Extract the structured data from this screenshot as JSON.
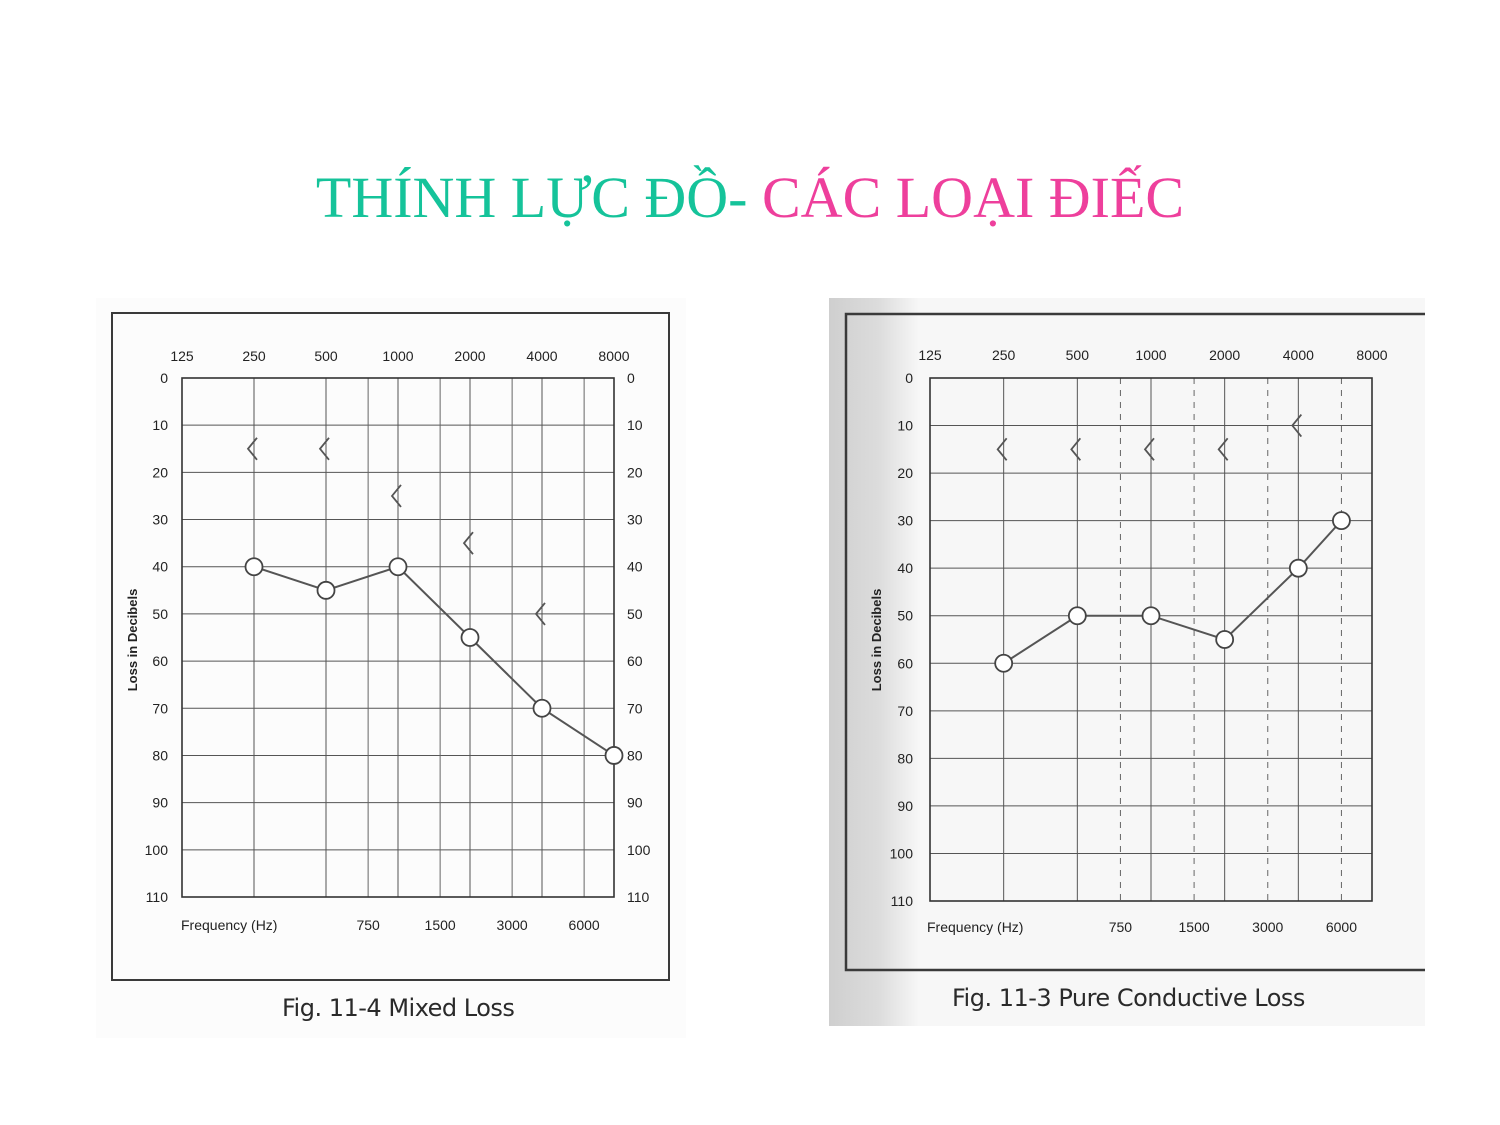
{
  "slide": {
    "title_part_1": "THÍNH LỰC ĐỒ-",
    "title_part_2": " CÁC LOẠI ĐIẾC",
    "title_color_1": "#15c39a",
    "title_color_2": "#ee3f9c"
  },
  "chart_data": [
    {
      "type": "line",
      "caption": "Fig. 11-4 Mixed Loss",
      "ylabel": "Loss in Decibels",
      "xlabel": "Frequency (Hz)",
      "top_frequency_labels": [
        "125",
        "250",
        "500",
        "1000",
        "2000",
        "4000",
        "8000"
      ],
      "bottom_frequency_labels": [
        "750",
        "1500",
        "3000",
        "6000"
      ],
      "y_ticks": [
        "0",
        "10",
        "20",
        "30",
        "40",
        "50",
        "60",
        "70",
        "80",
        "90",
        "100",
        "110"
      ],
      "y_tick_labels_right": true,
      "ylim": [
        0,
        110
      ],
      "y_inverted": true,
      "intermediate_gridlines_dashed": false,
      "series": [
        {
          "marker": "circle",
          "connected": true,
          "points": [
            {
              "x": 250,
              "y": 40
            },
            {
              "x": 500,
              "y": 45
            },
            {
              "x": 1000,
              "y": 40
            },
            {
              "x": 2000,
              "y": 55
            },
            {
              "x": 4000,
              "y": 70
            },
            {
              "x": 8000,
              "y": 80
            }
          ]
        },
        {
          "marker": "bracket-left",
          "connected": false,
          "points": [
            {
              "x": 250,
              "y": 15
            },
            {
              "x": 500,
              "y": 15
            },
            {
              "x": 1000,
              "y": 25
            },
            {
              "x": 2000,
              "y": 35
            },
            {
              "x": 4000,
              "y": 50
            }
          ]
        }
      ]
    },
    {
      "type": "line",
      "caption": "Fig. 11-3 Pure Conductive Loss",
      "ylabel": "Loss in Decibels",
      "xlabel": "Frequency (Hz)",
      "top_frequency_labels": [
        "125",
        "250",
        "500",
        "1000",
        "2000",
        "4000",
        "8000"
      ],
      "bottom_frequency_labels": [
        "750",
        "1500",
        "3000",
        "6000"
      ],
      "y_ticks": [
        "0",
        "10",
        "20",
        "30",
        "40",
        "50",
        "60",
        "70",
        "80",
        "90",
        "100",
        "110"
      ],
      "y_tick_labels_right": false,
      "ylim": [
        0,
        110
      ],
      "y_inverted": true,
      "intermediate_gridlines_dashed": true,
      "series": [
        {
          "marker": "circle",
          "connected": true,
          "points": [
            {
              "x": 250,
              "y": 60
            },
            {
              "x": 500,
              "y": 50
            },
            {
              "x": 1000,
              "y": 50
            },
            {
              "x": 2000,
              "y": 55
            },
            {
              "x": 4000,
              "y": 40
            },
            {
              "x": 6000,
              "y": 30
            }
          ]
        },
        {
          "marker": "bracket-left",
          "connected": false,
          "points": [
            {
              "x": 250,
              "y": 15
            },
            {
              "x": 500,
              "y": 15
            },
            {
              "x": 1000,
              "y": 15
            },
            {
              "x": 2000,
              "y": 15
            },
            {
              "x": 4000,
              "y": 10
            }
          ]
        }
      ]
    }
  ]
}
